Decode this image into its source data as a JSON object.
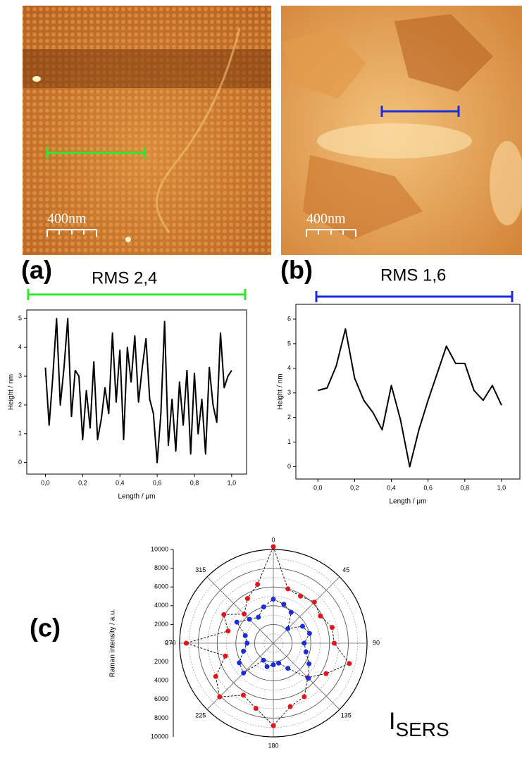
{
  "panels": [
    {
      "label": "(a)",
      "rms": "RMS 2,4",
      "scale_bar": "400nm"
    },
    {
      "label": "(b)",
      "rms": "RMS 1,6",
      "scale_bar": "400nm"
    },
    {
      "label": "(c)"
    }
  ],
  "isers": {
    "main": "I",
    "sub": "SERS"
  },
  "chart_data": [
    {
      "type": "line",
      "x_label": "Length / μm",
      "y_label": "Height / nm",
      "x": [
        0,
        0.02,
        0.04,
        0.06,
        0.08,
        0.1,
        0.12,
        0.14,
        0.16,
        0.18,
        0.2,
        0.22,
        0.24,
        0.26,
        0.28,
        0.3,
        0.32,
        0.34,
        0.36,
        0.38,
        0.4,
        0.42,
        0.44,
        0.46,
        0.48,
        0.5,
        0.52,
        0.54,
        0.56,
        0.58,
        0.6,
        0.62,
        0.64,
        0.66,
        0.68,
        0.7,
        0.72,
        0.74,
        0.76,
        0.78,
        0.8,
        0.82,
        0.84,
        0.86,
        0.88,
        0.9,
        0.92,
        0.94,
        0.96,
        0.98,
        1.0
      ],
      "series": [
        {
          "color": "#000000",
          "values": [
            3.3,
            1.3,
            3.0,
            5.0,
            2.0,
            3.3,
            5.0,
            1.6,
            3.2,
            3.0,
            0.8,
            2.5,
            1.2,
            3.5,
            0.8,
            1.5,
            2.6,
            1.7,
            4.5,
            2.1,
            3.9,
            0.8,
            4.0,
            2.8,
            4.4,
            2.1,
            3.3,
            4.3,
            2.2,
            1.7,
            0.0,
            1.7,
            4.9,
            0.6,
            2.2,
            0.4,
            2.8,
            1.3,
            3.2,
            0.3,
            3.1,
            1.0,
            2.2,
            0.3,
            3.3,
            2.0,
            1.4,
            4.5,
            2.6,
            3.0,
            3.2
          ]
        }
      ],
      "xlim": [
        -0.1,
        1.08
      ],
      "ylim": [
        -0.4,
        5.3
      ],
      "xticks": [
        {
          "value": 0,
          "label": "0,0"
        },
        {
          "value": 0.2,
          "label": "0,2"
        },
        {
          "value": 0.4,
          "label": "0,4"
        },
        {
          "value": 0.6,
          "label": "0,6"
        },
        {
          "value": 0.8,
          "label": "0,8"
        },
        {
          "value": 1.0,
          "label": "1,0"
        }
      ],
      "yticks": [
        0,
        1,
        2,
        3,
        4,
        5
      ]
    },
    {
      "type": "line",
      "x_label": "Length / μm",
      "y_label": "Height / nm",
      "x": [
        0,
        0.05,
        0.1,
        0.15,
        0.2,
        0.25,
        0.3,
        0.35,
        0.4,
        0.45,
        0.5,
        0.55,
        0.6,
        0.65,
        0.7,
        0.75,
        0.8,
        0.85,
        0.9,
        0.95,
        1.0
      ],
      "series": [
        {
          "color": "#000000",
          "values": [
            3.1,
            3.2,
            4.1,
            5.6,
            3.6,
            2.7,
            2.2,
            1.5,
            3.3,
            1.9,
            0.0,
            1.5,
            2.7,
            3.8,
            4.9,
            4.2,
            4.2,
            3.1,
            2.7,
            3.3,
            2.5
          ]
        }
      ],
      "xlim": [
        -0.12,
        1.1
      ],
      "ylim": [
        -0.5,
        6.6
      ],
      "xticks": [
        {
          "value": 0,
          "label": "0,0"
        },
        {
          "value": 0.2,
          "label": "0,2"
        },
        {
          "value": 0.4,
          "label": "0,4"
        },
        {
          "value": 0.6,
          "label": "0,6"
        },
        {
          "value": 0.8,
          "label": "0,8"
        },
        {
          "value": 1.0,
          "label": "1,0"
        }
      ],
      "yticks": [
        0,
        1,
        2,
        3,
        4,
        5,
        6
      ]
    },
    {
      "type": "polar",
      "r_label": "Raman intensity / a.u.",
      "theta": [
        0,
        15,
        30,
        45,
        60,
        75,
        90,
        105,
        120,
        135,
        150,
        165,
        180,
        195,
        210,
        225,
        240,
        255,
        270,
        285,
        300,
        315,
        330,
        345
      ],
      "series": [
        {
          "color": "#e8141a",
          "values": [
            10300,
            6000,
            5800,
            6200,
            5800,
            6500,
            6500,
            8400,
            6500,
            5200,
            6600,
            7000,
            8800,
            7200,
            6400,
            8100,
            7100,
            5300,
            9300,
            5000,
            6100,
            4400,
            5500,
            6500
          ]
        },
        {
          "color": "#1a2ee0",
          "values": [
            4700,
            4300,
            3800,
            2200,
            3600,
            4000,
            3300,
            3600,
            4400,
            5300,
            3100,
            2200,
            2300,
            2600,
            2100,
            4500,
            4200,
            3300,
            2800,
            3100,
            4500,
            3600,
            3200,
            4000
          ]
        }
      ],
      "rlim": [
        0,
        10000
      ],
      "rticks": [
        0,
        2000,
        4000,
        6000,
        8000,
        10000
      ],
      "angle_ticks": [
        0,
        45,
        90,
        135,
        180,
        225,
        270,
        315
      ]
    }
  ]
}
